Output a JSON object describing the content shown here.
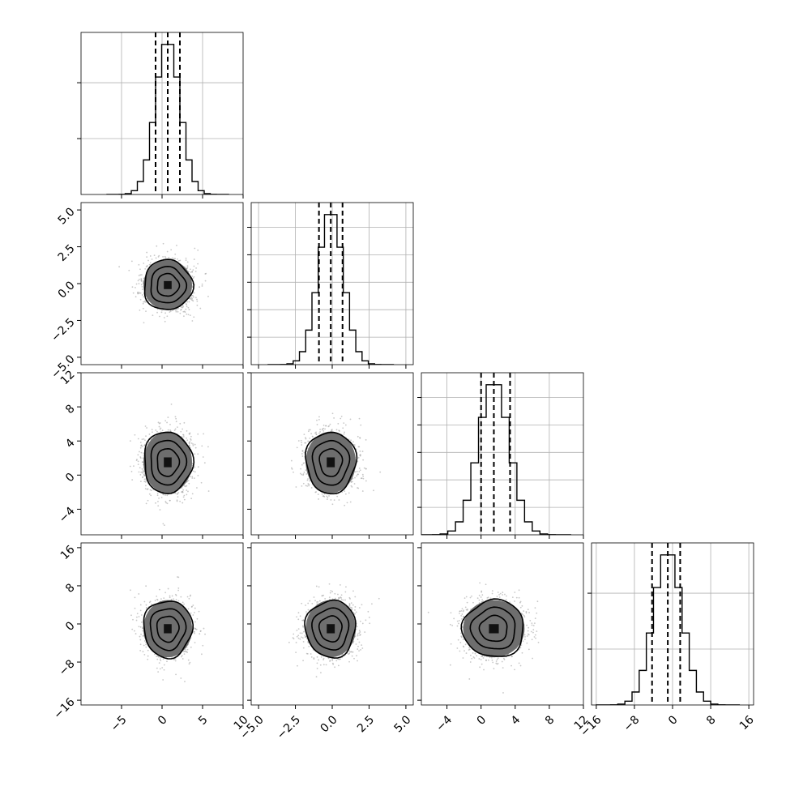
{
  "chart_data": {
    "type": "corner",
    "title": "",
    "n_params": 4,
    "params": [
      {
        "range": [
          -10,
          10
        ],
        "ticks": [
          -5,
          0,
          5,
          10
        ],
        "tick_labels": [
          "−5",
          "0",
          "5",
          "10"
        ],
        "mean": 0.7,
        "sd": 1.5,
        "quantiles": [
          -0.8,
          0.7,
          2.2
        ]
      },
      {
        "range": [
          -5.5,
          5.5
        ],
        "ticks": [
          -5,
          -2.5,
          0,
          2.5,
          5
        ],
        "tick_labels": [
          "−5.0",
          "−2.5",
          "0.0",
          "2.5",
          "5.0"
        ],
        "mean": -0.1,
        "sd": 0.85,
        "quantiles": [
          -0.9,
          -0.1,
          0.7
        ]
      },
      {
        "range": [
          -7,
          12
        ],
        "ticks": [
          -4,
          0,
          4,
          8,
          12
        ],
        "tick_labels": [
          "−4",
          "0",
          "4",
          "8",
          "12"
        ],
        "mean": 1.5,
        "sd": 1.8,
        "quantiles": [
          0.0,
          1.5,
          3.4
        ]
      },
      {
        "range": [
          -17,
          17
        ],
        "ticks": [
          -16,
          -8,
          0,
          8,
          16
        ],
        "tick_labels": [
          "−16",
          "−8",
          "0",
          "8",
          "16"
        ],
        "mean": -1.0,
        "sd": 3.0,
        "quantiles": [
          -4.3,
          -1.0,
          1.6
        ]
      }
    ],
    "grid": true,
    "contour_levels": [
      0.5,
      1.0,
      1.5,
      2.0
    ],
    "legend": "none",
    "xlabel": "",
    "ylabel": ""
  }
}
